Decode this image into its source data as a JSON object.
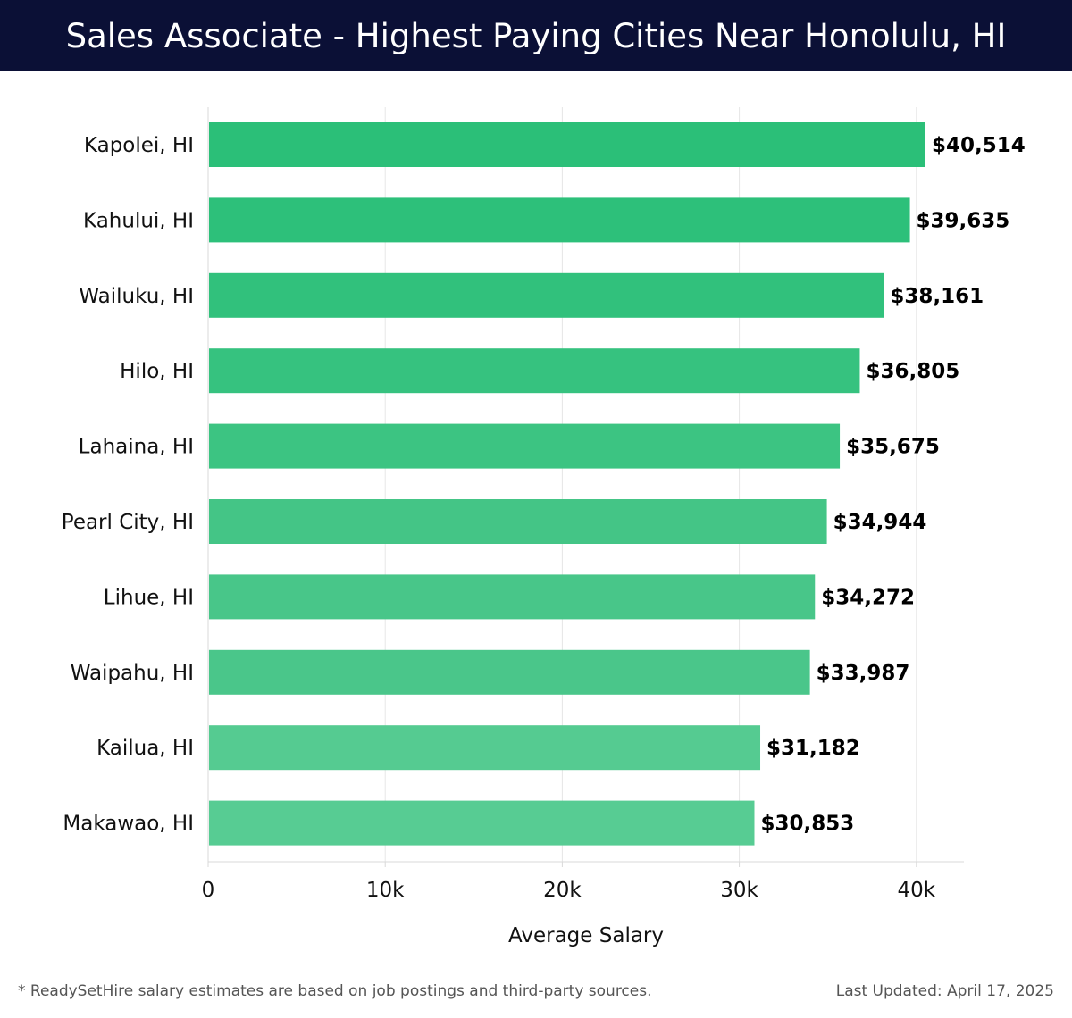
{
  "header": {
    "title": "Sales Associate - Highest Paying Cities Near Honolulu, HI"
  },
  "chart_data": {
    "type": "bar",
    "orientation": "horizontal",
    "categories": [
      "Kapolei, HI",
      "Kahului, HI",
      "Wailuku, HI",
      "Hilo, HI",
      "Lahaina, HI",
      "Pearl City, HI",
      "Lihue, HI",
      "Waipahu, HI",
      "Kailua, HI",
      "Makawao, HI"
    ],
    "values": [
      40514,
      39635,
      38161,
      36805,
      35675,
      34944,
      34272,
      33987,
      31182,
      30853
    ],
    "value_labels": [
      "$40,514",
      "$39,635",
      "$38,161",
      "$36,805",
      "$35,675",
      "$34,944",
      "$34,272",
      "$33,987",
      "$31,182",
      "$30,853"
    ],
    "xlabel": "Average Salary",
    "ylabel": "",
    "xlim": [
      0,
      42685
    ],
    "xticks": [
      0,
      10000,
      20000,
      30000,
      40000
    ],
    "xtick_labels": [
      "0",
      "10k",
      "20k",
      "30k",
      "40k"
    ],
    "grid": true,
    "bar_colors": [
      "#2bbf78",
      "#2dc07a",
      "#31c17c",
      "#36c27f",
      "#3cc482",
      "#44c586",
      "#48c689",
      "#4ac68a",
      "#55cb91",
      "#57cc93"
    ]
  },
  "footer": {
    "note": "* ReadySetHire salary estimates are based on job postings and third-party sources.",
    "updated": "Last Updated: April 17, 2025"
  }
}
